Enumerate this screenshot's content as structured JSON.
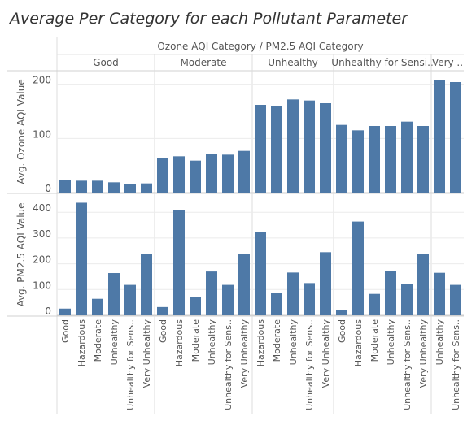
{
  "title": "Average Per Category for each Pollutant Parameter",
  "chart_data": {
    "type": "bar",
    "column_header": "Ozone AQI Category  /  PM2.5 AQI Category",
    "panels": [
      {
        "label": "Good",
        "categories": [
          "Good",
          "Hazardous",
          "Moderate",
          "Unhealthy",
          "Unhealthy for Sens..",
          "Very Unhealthy"
        ]
      },
      {
        "label": "Moderate",
        "categories": [
          "Good",
          "Hazardous",
          "Moderate",
          "Unhealthy",
          "Unhealthy for Sens..",
          "Very Unhealthy"
        ]
      },
      {
        "label": "Unhealthy",
        "categories": [
          "Hazardous",
          "Moderate",
          "Unhealthy",
          "Unhealthy for Sens..",
          "Very Unhealthy"
        ]
      },
      {
        "label": "Unhealthy for Sensi..",
        "categories": [
          "Good",
          "Hazardous",
          "Moderate",
          "Unhealthy",
          "Unhealthy for Sens..",
          "Very Unhealthy"
        ]
      },
      {
        "label": "Very ..",
        "categories": [
          "Unhealthy",
          "Unhealthy for Sens.."
        ]
      }
    ],
    "series": [
      {
        "name": "Avg. Ozone AQI Value",
        "ylim": [
          0,
          225
        ],
        "ticks": [
          0,
          100,
          200
        ],
        "values": [
          [
            23,
            22,
            22,
            19,
            15,
            17
          ],
          [
            64,
            67,
            59,
            72,
            70,
            77
          ],
          [
            162,
            159,
            172,
            170,
            165
          ],
          [
            125,
            115,
            123,
            123,
            131,
            123
          ],
          [
            208,
            204
          ]
        ]
      },
      {
        "name": "Avg. PM2.5 AQI Value",
        "ylim": [
          0,
          470
        ],
        "ticks": [
          0,
          100,
          200,
          300,
          400
        ],
        "values": [
          [
            26,
            437,
            64,
            164,
            118,
            238
          ],
          [
            32,
            409,
            71,
            170,
            118,
            239
          ],
          [
            324,
            86,
            166,
            125,
            245
          ],
          [
            22,
            364,
            83,
            173,
            122,
            239
          ],
          [
            165,
            118
          ]
        ]
      }
    ],
    "bar_color": "#4e79a7"
  }
}
